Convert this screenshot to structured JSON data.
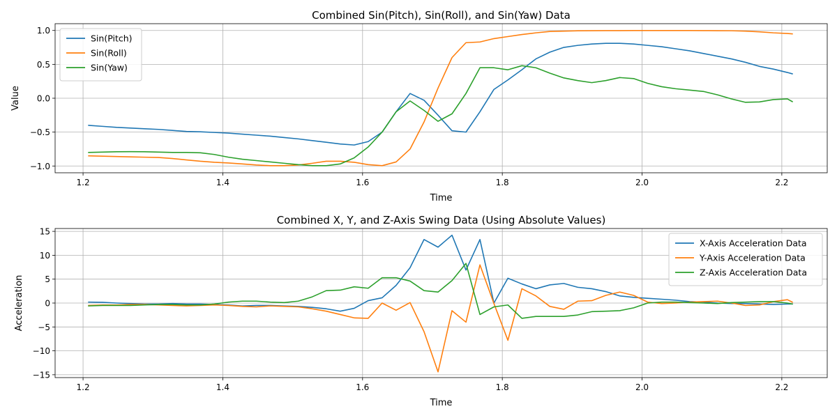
{
  "chart_data": [
    {
      "type": "line",
      "title": "Combined Sin(Pitch), Sin(Roll), and Sin(Yaw) Data",
      "xlabel": "Time",
      "ylabel": "Value",
      "xlim": [
        1.16,
        2.265
      ],
      "ylim": [
        -1.1,
        1.1
      ],
      "xticks": [
        1.2,
        1.4,
        1.6,
        1.8,
        2.0,
        2.2
      ],
      "xtick_labels": [
        "1.2",
        "1.4",
        "1.6",
        "1.8",
        "2.0",
        "2.2"
      ],
      "yticks": [
        -1.0,
        -0.5,
        0.0,
        0.5,
        1.0
      ],
      "ytick_labels": [
        "−1.0",
        "−0.5",
        "0.0",
        "0.5",
        "1.0"
      ],
      "grid": true,
      "legend_position": "top-left",
      "x": [
        1.208,
        1.228,
        1.248,
        1.268,
        1.288,
        1.308,
        1.328,
        1.348,
        1.368,
        1.388,
        1.408,
        1.428,
        1.448,
        1.468,
        1.488,
        1.508,
        1.528,
        1.548,
        1.568,
        1.588,
        1.608,
        1.628,
        1.648,
        1.668,
        1.688,
        1.708,
        1.728,
        1.748,
        1.768,
        1.788,
        1.808,
        1.828,
        1.848,
        1.868,
        1.888,
        1.908,
        1.928,
        1.948,
        1.968,
        1.988,
        2.008,
        2.028,
        2.048,
        2.068,
        2.088,
        2.108,
        2.128,
        2.148,
        2.168,
        2.188,
        2.208,
        2.215
      ],
      "series": [
        {
          "name": "Sin(Pitch)",
          "color": "#1f77b4",
          "values": [
            -0.4,
            -0.415,
            -0.43,
            -0.44,
            -0.45,
            -0.46,
            -0.475,
            -0.49,
            -0.495,
            -0.505,
            -0.515,
            -0.53,
            -0.545,
            -0.56,
            -0.58,
            -0.6,
            -0.625,
            -0.65,
            -0.675,
            -0.69,
            -0.64,
            -0.5,
            -0.2,
            0.07,
            -0.03,
            -0.25,
            -0.48,
            -0.5,
            -0.2,
            0.13,
            0.27,
            0.42,
            0.58,
            0.68,
            0.75,
            0.78,
            0.8,
            0.81,
            0.81,
            0.8,
            0.78,
            0.76,
            0.73,
            0.7,
            0.66,
            0.62,
            0.58,
            0.53,
            0.47,
            0.43,
            0.38,
            0.36
          ]
        },
        {
          "name": "Sin(Roll)",
          "color": "#ff7f0e",
          "values": [
            -0.85,
            -0.855,
            -0.86,
            -0.865,
            -0.87,
            -0.875,
            -0.89,
            -0.91,
            -0.93,
            -0.945,
            -0.955,
            -0.97,
            -0.985,
            -0.995,
            -0.995,
            -0.985,
            -0.96,
            -0.93,
            -0.93,
            -0.945,
            -0.98,
            -0.995,
            -0.94,
            -0.75,
            -0.35,
            0.15,
            0.6,
            0.82,
            0.83,
            0.88,
            0.91,
            0.94,
            0.965,
            0.985,
            0.99,
            0.995,
            0.997,
            0.998,
            0.998,
            0.999,
            0.999,
            0.999,
            0.999,
            0.999,
            0.998,
            0.997,
            0.996,
            0.99,
            0.98,
            0.965,
            0.955,
            0.95
          ]
        },
        {
          "name": "Sin(Yaw)",
          "color": "#2ca02c",
          "values": [
            -0.8,
            -0.795,
            -0.79,
            -0.788,
            -0.79,
            -0.795,
            -0.8,
            -0.8,
            -0.805,
            -0.83,
            -0.87,
            -0.9,
            -0.92,
            -0.94,
            -0.96,
            -0.98,
            -0.995,
            -0.995,
            -0.97,
            -0.88,
            -0.72,
            -0.5,
            -0.2,
            -0.04,
            -0.18,
            -0.34,
            -0.23,
            0.07,
            0.45,
            0.45,
            0.42,
            0.48,
            0.45,
            0.37,
            0.3,
            0.26,
            0.23,
            0.26,
            0.305,
            0.29,
            0.22,
            0.17,
            0.14,
            0.12,
            0.1,
            0.05,
            -0.01,
            -0.06,
            -0.055,
            -0.02,
            -0.01,
            -0.05
          ]
        }
      ]
    },
    {
      "type": "line",
      "title": "Combined X, Y, and Z-Axis Swing Data (Using Absolute Values)",
      "xlabel": "Time",
      "ylabel": "Acceleration",
      "xlim": [
        1.16,
        2.265
      ],
      "ylim": [
        -15.6,
        15.6
      ],
      "xticks": [
        1.2,
        1.4,
        1.6,
        1.8,
        2.0,
        2.2
      ],
      "xtick_labels": [
        "1.2",
        "1.4",
        "1.6",
        "1.8",
        "2.0",
        "2.2"
      ],
      "yticks": [
        -15,
        -10,
        -5,
        0,
        5,
        10,
        15
      ],
      "ytick_labels": [
        "−15",
        "−10",
        "−5",
        "0",
        "5",
        "10",
        "15"
      ],
      "grid": true,
      "legend_position": "top-right",
      "x": [
        1.208,
        1.228,
        1.248,
        1.268,
        1.288,
        1.308,
        1.328,
        1.348,
        1.368,
        1.388,
        1.408,
        1.428,
        1.448,
        1.468,
        1.488,
        1.508,
        1.528,
        1.548,
        1.568,
        1.588,
        1.608,
        1.628,
        1.648,
        1.668,
        1.688,
        1.708,
        1.728,
        1.748,
        1.768,
        1.788,
        1.808,
        1.828,
        1.848,
        1.868,
        1.888,
        1.908,
        1.928,
        1.948,
        1.968,
        1.988,
        2.008,
        2.028,
        2.048,
        2.068,
        2.088,
        2.108,
        2.128,
        2.148,
        2.168,
        2.188,
        2.208,
        2.215
      ],
      "series": [
        {
          "name": "X-Axis Acceleration Data",
          "color": "#1f77b4",
          "values": [
            0.2,
            0.15,
            0.0,
            -0.1,
            -0.2,
            -0.2,
            -0.1,
            -0.2,
            -0.2,
            -0.3,
            -0.4,
            -0.6,
            -0.5,
            -0.5,
            -0.6,
            -0.7,
            -0.9,
            -1.2,
            -1.7,
            -1.1,
            0.5,
            1.1,
            3.7,
            7.4,
            13.3,
            11.7,
            14.2,
            6.9,
            13.3,
            0.0,
            5.2,
            4.0,
            3.0,
            3.8,
            4.1,
            3.3,
            3.0,
            2.4,
            1.5,
            1.2,
            1.0,
            0.8,
            0.6,
            0.3,
            0.2,
            0.0,
            -0.1,
            -0.1,
            -0.2,
            -0.3,
            -0.2,
            -0.2
          ]
        },
        {
          "name": "Y-Axis Acceleration Data",
          "color": "#ff7f0e",
          "values": [
            -0.5,
            -0.4,
            -0.4,
            -0.3,
            -0.3,
            -0.4,
            -0.5,
            -0.6,
            -0.5,
            -0.4,
            -0.5,
            -0.7,
            -0.8,
            -0.6,
            -0.7,
            -0.8,
            -1.2,
            -1.7,
            -2.4,
            -3.1,
            -3.2,
            0.0,
            -1.5,
            0.1,
            -6.0,
            -14.4,
            -1.6,
            -4.0,
            8.0,
            -0.1,
            -7.8,
            3.0,
            1.5,
            -0.7,
            -1.3,
            0.4,
            0.5,
            1.6,
            2.3,
            1.6,
            0.2,
            -0.1,
            0.0,
            0.2,
            0.3,
            0.4,
            0.0,
            -0.5,
            -0.4,
            0.3,
            0.7,
            0.2
          ]
        },
        {
          "name": "Z-Axis Acceleration Data",
          "color": "#2ca02c",
          "values": [
            -0.6,
            -0.5,
            -0.5,
            -0.5,
            -0.4,
            -0.3,
            -0.3,
            -0.4,
            -0.4,
            -0.2,
            0.2,
            0.4,
            0.4,
            0.2,
            0.1,
            0.4,
            1.3,
            2.6,
            2.7,
            3.4,
            3.1,
            5.3,
            5.3,
            4.6,
            2.6,
            2.3,
            4.7,
            8.3,
            -2.4,
            -0.8,
            -0.4,
            -3.2,
            -2.8,
            -2.8,
            -2.8,
            -2.5,
            -1.8,
            -1.7,
            -1.6,
            -1.0,
            0.0,
            0.2,
            0.2,
            0.1,
            0.0,
            -0.1,
            0.1,
            0.2,
            0.3,
            0.3,
            0.0,
            -0.2
          ]
        }
      ]
    }
  ]
}
